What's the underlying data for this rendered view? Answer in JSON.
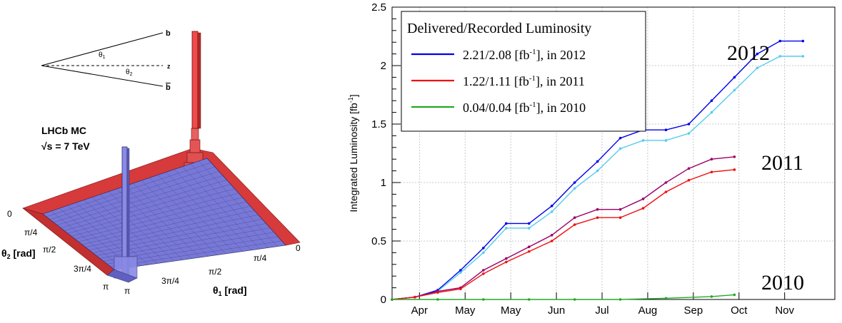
{
  "left_plot": {
    "diagram": {
      "b": "b",
      "bbar": "b",
      "z": "z",
      "theta1": "θ",
      "theta1_sub": "1",
      "theta2": "θ",
      "theta2_sub": "2"
    },
    "label_line1": "LHCb MC",
    "label_sqrt": "√s",
    "label_energy": "= 7 TeV",
    "theta2_axis": {
      "label": "θ",
      "sub": "2",
      "unit": "[rad]",
      "ticks": [
        "0",
        "π/4",
        "π/2",
        "3π/4",
        "π"
      ]
    },
    "theta1_axis": {
      "label": "θ",
      "sub": "1",
      "unit": "[rad]",
      "ticks": [
        "π",
        "3π/4",
        "π/2",
        "π/4",
        "0"
      ]
    },
    "colors": {
      "gg": "#ef4444",
      "qq": "#7b7bd8"
    }
  },
  "chart_data": {
    "type": "line",
    "ylabel": "Integrated Luminosity [fb",
    "ylabel_sup": "-1",
    "ylabel_end": "]",
    "ylim": [
      0,
      2.5
    ],
    "yticks": [
      0,
      0.5,
      1,
      1.5,
      2,
      2.5
    ],
    "ytick_labels": [
      "0",
      "0.5",
      "1",
      "1.5",
      "2",
      "2.5"
    ],
    "xtick_labels": [
      "Apr",
      "May",
      "May",
      "Jun",
      "Jul",
      "Aug",
      "Sep",
      "Oct",
      "Nov"
    ],
    "grid": true,
    "legend": {
      "title": "Delivered/Recorded Luminosity",
      "placement": "top-left",
      "entries": [
        {
          "value": "2.21/2.08",
          "unit": "[fb",
          "sup": "-1",
          "unit_end": "], in 2012",
          "color": "#0000ee"
        },
        {
          "value": "1.22/1.11",
          "unit": "[fb",
          "sup": "-1",
          "unit_end": "], in 2011",
          "color": "#ee1111"
        },
        {
          "value": "0.04/0.04",
          "unit": "[fb",
          "sup": "-1",
          "unit_end": "], in 2010",
          "color": "#22aa22"
        }
      ]
    },
    "year_labels": [
      {
        "text": "2012",
        "color": "#0000ee"
      },
      {
        "text": "2011",
        "color": "#990066"
      },
      {
        "text": "2010",
        "color": "#22aa22"
      }
    ],
    "series": [
      {
        "name": "2012 delivered",
        "color": "#0000ee",
        "x": [
          0,
          0.5,
          1.0,
          1.5,
          2.0,
          2.5,
          3.0,
          3.5,
          4.0,
          4.5,
          5.0,
          5.5,
          6.0,
          6.5,
          7.0,
          7.5,
          8.0,
          8.5,
          9.0
        ],
        "y": [
          0.0,
          0.02,
          0.08,
          0.25,
          0.44,
          0.65,
          0.65,
          0.8,
          1.0,
          1.18,
          1.38,
          1.45,
          1.45,
          1.5,
          1.7,
          1.9,
          2.1,
          2.21,
          2.21
        ]
      },
      {
        "name": "2012 recorded",
        "color": "#55ccee",
        "x": [
          0,
          0.5,
          1.0,
          1.5,
          2.0,
          2.5,
          3.0,
          3.5,
          4.0,
          4.5,
          5.0,
          5.5,
          6.0,
          6.5,
          7.0,
          7.5,
          8.0,
          8.5,
          9.0
        ],
        "y": [
          0.0,
          0.02,
          0.07,
          0.23,
          0.4,
          0.61,
          0.61,
          0.75,
          0.95,
          1.1,
          1.29,
          1.36,
          1.36,
          1.42,
          1.6,
          1.79,
          1.98,
          2.08,
          2.08
        ]
      },
      {
        "name": "2011 delivered",
        "color": "#990066",
        "x": [
          0,
          0.5,
          1.0,
          1.5,
          2.0,
          2.5,
          3.0,
          3.5,
          4.0,
          4.5,
          5.0,
          5.5,
          6.0,
          6.5,
          7.0,
          7.5
        ],
        "y": [
          0.0,
          0.02,
          0.07,
          0.1,
          0.25,
          0.35,
          0.45,
          0.55,
          0.7,
          0.77,
          0.77,
          0.86,
          1.0,
          1.12,
          1.2,
          1.22
        ]
      },
      {
        "name": "2011 recorded",
        "color": "#ee1111",
        "x": [
          0,
          0.5,
          1.0,
          1.5,
          2.0,
          2.5,
          3.0,
          3.5,
          4.0,
          4.5,
          5.0,
          5.5,
          6.0,
          6.5,
          7.0,
          7.5
        ],
        "y": [
          0.0,
          0.02,
          0.06,
          0.09,
          0.22,
          0.32,
          0.41,
          0.5,
          0.64,
          0.7,
          0.7,
          0.78,
          0.92,
          1.02,
          1.09,
          1.11
        ]
      },
      {
        "name": "2010 delivered",
        "color": "#22aa22",
        "x": [
          0,
          1,
          2,
          3,
          4,
          5,
          6,
          7,
          7.5
        ],
        "y": [
          0.0,
          0.0,
          0.0,
          0.0,
          0.0,
          0.0,
          0.01,
          0.025,
          0.04
        ]
      }
    ]
  }
}
